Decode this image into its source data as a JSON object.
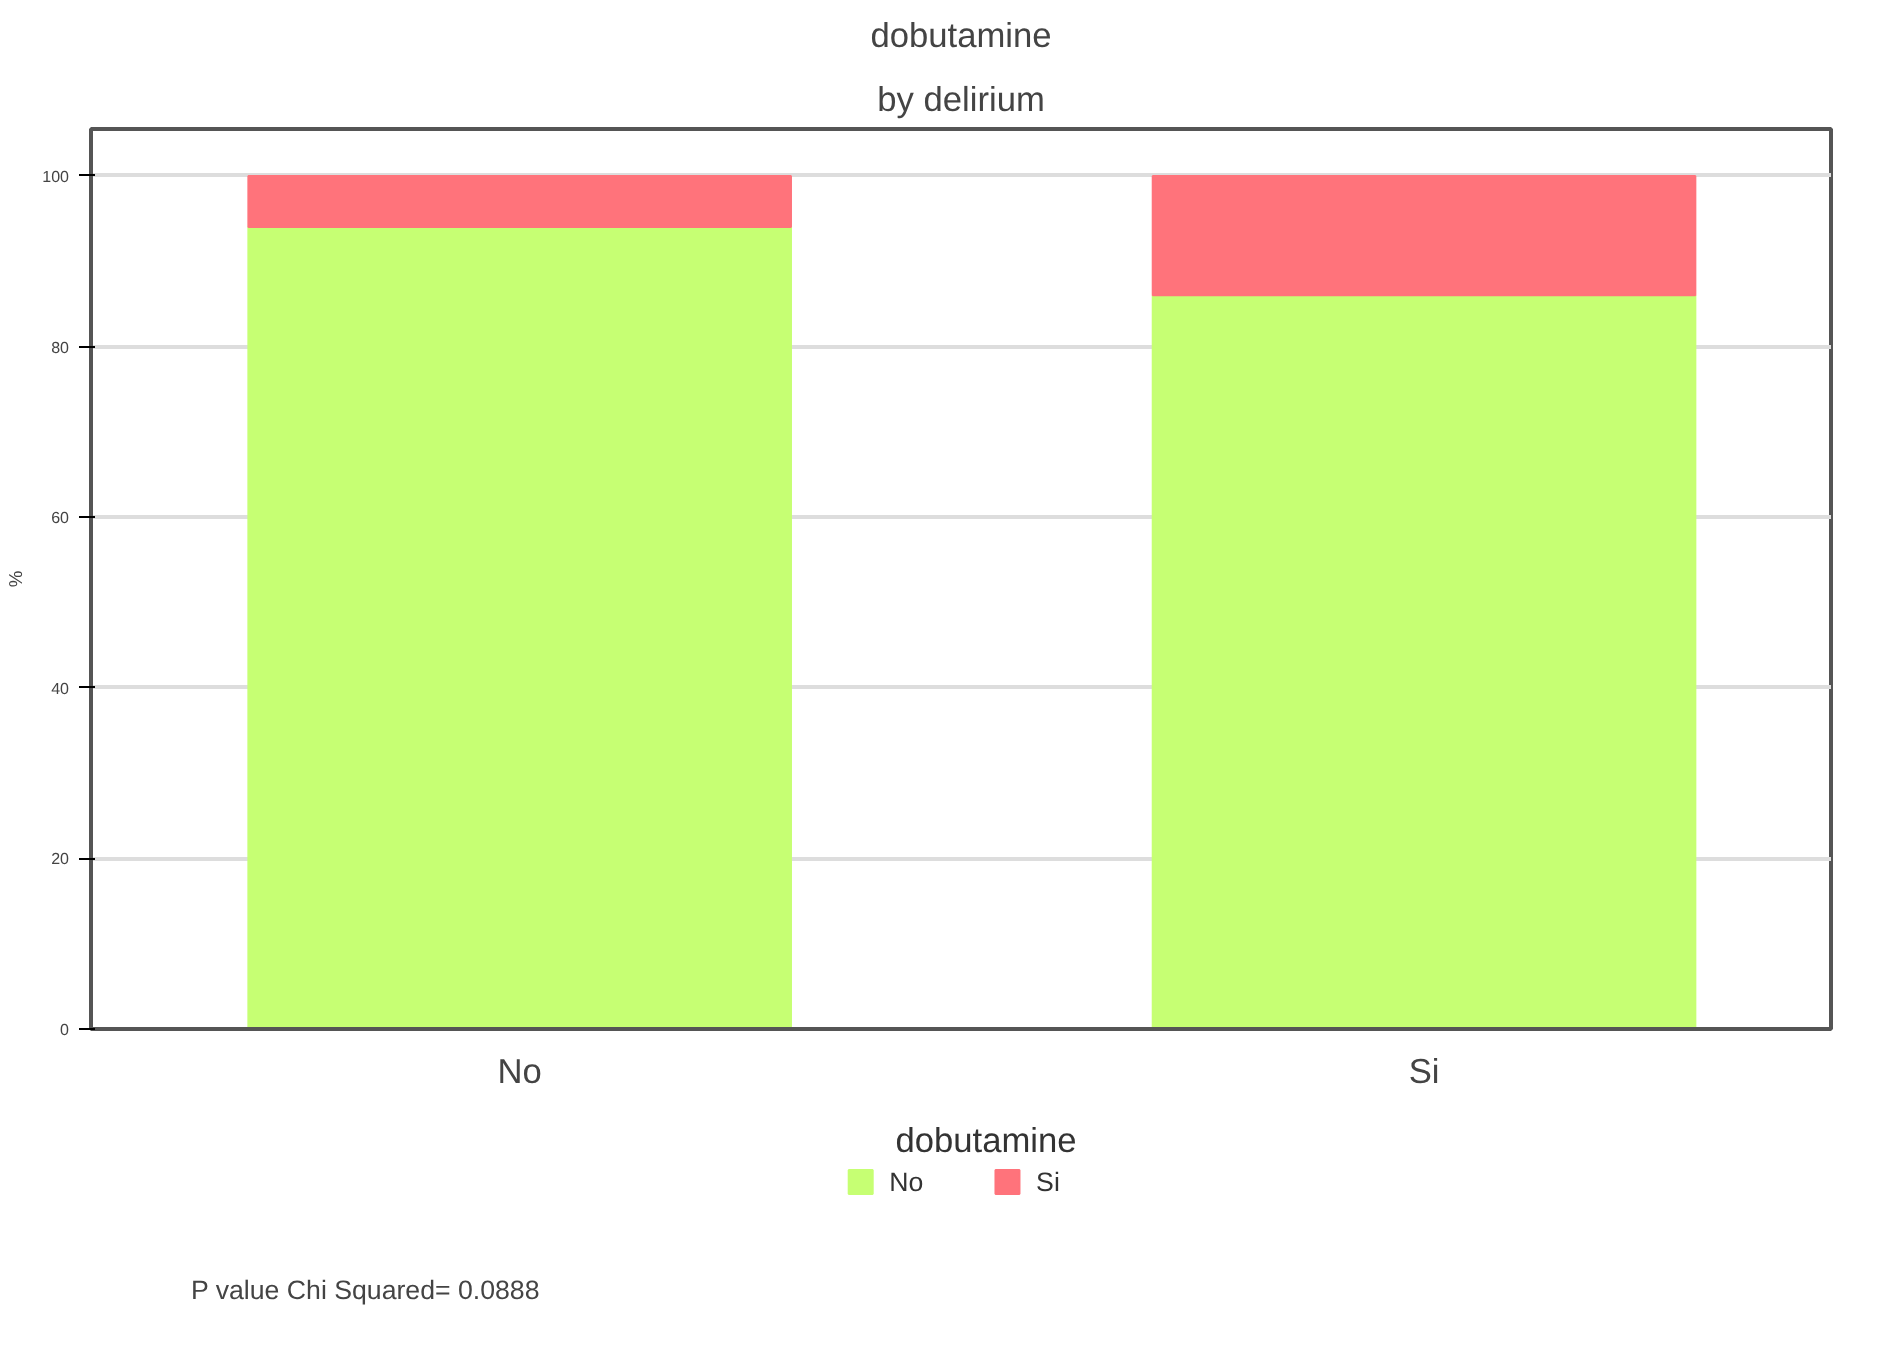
{
  "chart_data": {
    "type": "bar",
    "title": "dobutamine",
    "subtitle": "by delirium",
    "ylabel": "%",
    "legend_title": "dobutamine",
    "categories": [
      "No",
      "Si"
    ],
    "stacked": true,
    "series": [
      {
        "name": "No",
        "color": "#c6ff73",
        "values": [
          94,
          86
        ]
      },
      {
        "name": "Si",
        "color": "#ff737b",
        "values": [
          6,
          14
        ]
      }
    ],
    "ylim": [
      0,
      105.5
    ],
    "yticks": [
      0,
      20,
      40,
      60,
      80,
      100
    ],
    "grid": "y",
    "legend": "bottom",
    "annotations": [
      "P value Chi Squared=   0.0888"
    ]
  }
}
